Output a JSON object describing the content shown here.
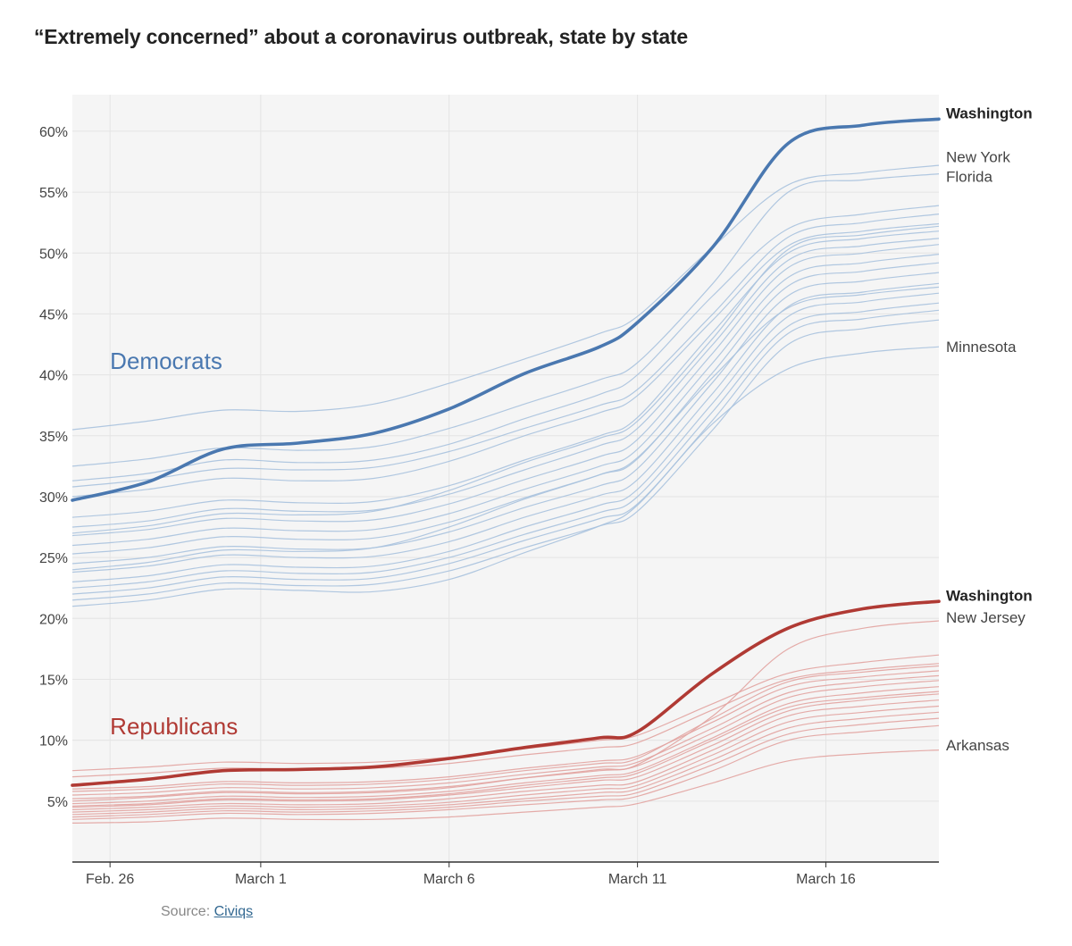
{
  "title": "“Extremely concerned” about a coronavirus outbreak, state by state",
  "source": {
    "label": "Source:",
    "link_text": "Civiqs"
  },
  "colors": {
    "democrat": "#4A78B0",
    "democrat_light": "#A9C2DE",
    "republican": "#B03A34",
    "republican_light": "#E2A3A0",
    "grid": "#E4E4E4",
    "plot_bg": "#F5F5F5",
    "axis": "#333333",
    "label": "#444444"
  },
  "chart_data": {
    "type": "line",
    "title": "“Extremely concerned” about a coronavirus outbreak, state by state",
    "xlabel": "",
    "ylabel": "",
    "ylim": [
      0,
      63
    ],
    "xlim": [
      -1,
      22
    ],
    "grid": true,
    "y_ticks": [
      5,
      10,
      15,
      20,
      25,
      30,
      35,
      40,
      45,
      50,
      55,
      60
    ],
    "y_tick_labels": [
      "5%",
      "10%",
      "15%",
      "20%",
      "25%",
      "30%",
      "35%",
      "40%",
      "45%",
      "50%",
      "55%",
      "60%"
    ],
    "x_ticks": [
      0,
      4,
      9,
      14,
      19
    ],
    "x_tick_labels": [
      "Feb. 26",
      "March 1",
      "March 6",
      "March 11",
      "March 16"
    ],
    "x": [
      -1,
      1,
      3,
      5,
      7,
      9,
      11,
      13,
      14,
      16,
      18,
      20,
      22
    ],
    "group_labels": [
      {
        "text": "Democrats",
        "group": "democrat",
        "x": 0,
        "y": 40.5
      },
      {
        "text": "Republicans",
        "group": "republican",
        "x": 0,
        "y": 10.5
      }
    ],
    "series": [
      {
        "name": "Washington (Democrats)",
        "group": "democrat",
        "highlight": true,
        "label": "Washington",
        "values": [
          29.7,
          31.2,
          33.9,
          34.4,
          35.2,
          37.2,
          40.1,
          42.3,
          44.3,
          50.5,
          59.0,
          60.5,
          61.0
        ]
      },
      {
        "name": "New York (Democrats)",
        "group": "democrat",
        "label": "New York",
        "values": [
          35.5,
          36.2,
          37.1,
          37.0,
          37.6,
          39.3,
          41.3,
          43.4,
          44.8,
          50.5,
          55.6,
          56.6,
          57.2
        ]
      },
      {
        "name": "Florida (Democrats)",
        "group": "democrat",
        "label": "Florida",
        "values": [
          32.5,
          33.1,
          34.0,
          33.8,
          34.1,
          35.6,
          37.6,
          39.6,
          41.0,
          47.5,
          55.0,
          56.0,
          56.5
        ]
      },
      {
        "name": "Minnesota (Democrats)",
        "group": "democrat",
        "label": "Minnesota",
        "values": [
          21.0,
          21.5,
          22.4,
          22.3,
          22.2,
          23.2,
          25.4,
          27.6,
          29.3,
          36.0,
          40.5,
          41.8,
          42.3
        ]
      },
      {
        "name": "State (Democrats) 5",
        "group": "democrat",
        "values": [
          31.3,
          31.9,
          33.0,
          32.8,
          33.0,
          34.3,
          36.4,
          38.4,
          40.0,
          46.5,
          52.0,
          53.2,
          53.9
        ]
      },
      {
        "name": "State (Democrats) 6",
        "group": "democrat",
        "values": [
          30.8,
          31.4,
          32.3,
          32.2,
          32.4,
          33.7,
          35.6,
          37.5,
          38.8,
          45.0,
          51.3,
          52.5,
          53.2
        ]
      },
      {
        "name": "State (Democrats) 7",
        "group": "democrat",
        "values": [
          30.0,
          30.6,
          31.5,
          31.3,
          31.5,
          32.9,
          35.0,
          36.9,
          38.3,
          44.5,
          50.6,
          51.8,
          52.4
        ]
      },
      {
        "name": "State (Democrats) 8",
        "group": "democrat",
        "values": [
          28.3,
          28.8,
          29.7,
          29.5,
          29.6,
          30.9,
          33.0,
          35.0,
          36.5,
          43.5,
          50.0,
          51.2,
          51.8
        ]
      },
      {
        "name": "State (Democrats) 9",
        "group": "democrat",
        "values": [
          27.5,
          28.0,
          29.0,
          28.8,
          28.9,
          30.2,
          32.2,
          34.2,
          35.6,
          42.5,
          49.4,
          50.6,
          51.2
        ]
      },
      {
        "name": "State (Democrats) 10",
        "group": "democrat",
        "values": [
          26.8,
          27.3,
          28.2,
          28.0,
          28.1,
          29.4,
          31.4,
          33.3,
          34.7,
          41.8,
          48.8,
          50.0,
          50.7
        ]
      },
      {
        "name": "State (Democrats) 11",
        "group": "democrat",
        "values": [
          26.0,
          26.5,
          27.4,
          27.2,
          27.3,
          28.6,
          30.6,
          32.5,
          33.9,
          41.0,
          48.0,
          49.2,
          49.9
        ]
      },
      {
        "name": "State (Democrats) 12",
        "group": "democrat",
        "values": [
          25.3,
          25.8,
          26.7,
          26.5,
          26.6,
          27.9,
          29.9,
          31.8,
          33.1,
          40.2,
          47.3,
          48.5,
          49.2
        ]
      },
      {
        "name": "State (Democrats) 13",
        "group": "democrat",
        "values": [
          24.5,
          25.0,
          25.9,
          25.7,
          25.8,
          27.1,
          29.1,
          30.9,
          32.3,
          39.4,
          46.5,
          47.7,
          48.4
        ]
      },
      {
        "name": "State (Democrats) 14",
        "group": "democrat",
        "values": [
          23.8,
          24.3,
          25.2,
          25.0,
          25.1,
          26.3,
          28.3,
          30.1,
          31.4,
          38.5,
          45.6,
          46.8,
          47.5
        ]
      },
      {
        "name": "State (Democrats) 15",
        "group": "democrat",
        "values": [
          23.0,
          23.5,
          24.4,
          24.2,
          24.3,
          25.5,
          27.5,
          29.3,
          30.6,
          37.7,
          44.8,
          46.0,
          46.7
        ]
      },
      {
        "name": "State (Democrats) 16",
        "group": "democrat",
        "values": [
          22.5,
          23.0,
          23.9,
          23.7,
          23.8,
          25.0,
          26.9,
          28.7,
          30.0,
          37.0,
          44.0,
          45.2,
          45.9
        ]
      },
      {
        "name": "State (Democrats) 17",
        "group": "democrat",
        "values": [
          22.0,
          22.5,
          23.4,
          23.2,
          23.3,
          24.5,
          26.4,
          28.2,
          29.4,
          36.3,
          43.4,
          44.6,
          45.3
        ]
      },
      {
        "name": "State (Democrats) 18",
        "group": "democrat",
        "values": [
          21.5,
          22.0,
          22.9,
          22.7,
          22.8,
          23.9,
          25.8,
          27.6,
          28.8,
          35.5,
          42.5,
          43.8,
          44.5
        ]
      },
      {
        "name": "State (Democrats) 19",
        "group": "democrat",
        "values": [
          27.0,
          27.6,
          28.6,
          28.5,
          28.8,
          30.5,
          32.8,
          34.8,
          36.2,
          43.0,
          50.3,
          51.5,
          52.2
        ]
      },
      {
        "name": "State (Democrats) 20",
        "group": "democrat",
        "values": [
          24.0,
          24.6,
          25.6,
          25.5,
          25.8,
          27.5,
          29.8,
          31.8,
          33.2,
          39.8,
          45.5,
          46.6,
          47.2
        ]
      },
      {
        "name": "Washington (Republicans)",
        "group": "republican",
        "highlight": true,
        "label": "Washington",
        "values": [
          6.3,
          6.8,
          7.5,
          7.6,
          7.8,
          8.5,
          9.4,
          10.2,
          10.7,
          15.5,
          19.2,
          20.8,
          21.4
        ]
      },
      {
        "name": "New Jersey (Republicans)",
        "group": "republican",
        "label": "New Jersey",
        "values": [
          5.0,
          5.3,
          5.7,
          5.6,
          5.7,
          6.1,
          6.9,
          7.6,
          8.0,
          12.0,
          17.5,
          19.2,
          19.8
        ]
      },
      {
        "name": "Arkansas (Republicans)",
        "group": "republican",
        "label": "Arkansas",
        "values": [
          3.2,
          3.3,
          3.6,
          3.5,
          3.5,
          3.7,
          4.1,
          4.5,
          4.8,
          6.5,
          8.3,
          8.9,
          9.2
        ]
      },
      {
        "name": "State (Republicans) 4",
        "group": "republican",
        "values": [
          7.5,
          7.8,
          8.2,
          8.1,
          8.2,
          8.6,
          9.3,
          10.0,
          10.4,
          13.0,
          15.5,
          16.4,
          17.0
        ]
      },
      {
        "name": "State (Republicans) 5",
        "group": "republican",
        "values": [
          7.0,
          7.3,
          7.7,
          7.6,
          7.7,
          8.1,
          8.8,
          9.4,
          9.8,
          12.5,
          15.0,
          15.8,
          16.3
        ]
      },
      {
        "name": "State (Republicans) 6",
        "group": "republican",
        "values": [
          6.0,
          6.2,
          6.6,
          6.5,
          6.6,
          7.0,
          7.7,
          8.3,
          8.7,
          11.5,
          14.4,
          15.2,
          15.7
        ]
      },
      {
        "name": "State (Republicans) 7",
        "group": "republican",
        "values": [
          5.5,
          5.7,
          6.1,
          6.0,
          6.1,
          6.5,
          7.2,
          7.8,
          8.2,
          11.0,
          13.9,
          14.8,
          15.3
        ]
      },
      {
        "name": "State (Republicans) 8",
        "group": "republican",
        "values": [
          5.2,
          5.4,
          5.8,
          5.7,
          5.8,
          6.2,
          6.9,
          7.5,
          7.9,
          10.6,
          13.5,
          14.4,
          14.9
        ]
      },
      {
        "name": "State (Republicans) 9",
        "group": "republican",
        "values": [
          4.8,
          5.0,
          5.4,
          5.3,
          5.4,
          5.8,
          6.5,
          7.1,
          7.5,
          10.2,
          13.0,
          13.9,
          14.4
        ]
      },
      {
        "name": "State (Republicans) 10",
        "group": "republican",
        "values": [
          4.5,
          4.7,
          5.1,
          5.0,
          5.1,
          5.5,
          6.1,
          6.7,
          7.0,
          9.6,
          12.4,
          13.3,
          13.8
        ]
      },
      {
        "name": "State (Republicans) 11",
        "group": "republican",
        "values": [
          4.3,
          4.5,
          4.8,
          4.7,
          4.8,
          5.2,
          5.8,
          6.3,
          6.6,
          9.2,
          12.0,
          12.8,
          13.3
        ]
      },
      {
        "name": "State (Republicans) 12",
        "group": "republican",
        "values": [
          4.1,
          4.3,
          4.6,
          4.5,
          4.6,
          4.9,
          5.5,
          6.0,
          6.3,
          8.8,
          11.5,
          12.3,
          12.8
        ]
      },
      {
        "name": "State (Republicans) 13",
        "group": "republican",
        "values": [
          3.9,
          4.1,
          4.4,
          4.3,
          4.4,
          4.7,
          5.2,
          5.7,
          6.0,
          8.4,
          11.0,
          11.8,
          12.3
        ]
      },
      {
        "name": "State (Republicans) 14",
        "group": "republican",
        "values": [
          3.7,
          3.9,
          4.2,
          4.1,
          4.2,
          4.5,
          5.0,
          5.4,
          5.7,
          8.0,
          10.5,
          11.3,
          11.8
        ]
      },
      {
        "name": "State (Republicans) 15",
        "group": "republican",
        "values": [
          3.5,
          3.7,
          4.0,
          3.9,
          4.0,
          4.3,
          4.7,
          5.1,
          5.4,
          7.5,
          10.0,
          10.7,
          11.2
        ]
      },
      {
        "name": "State (Republicans) 16",
        "group": "republican",
        "values": [
          4.6,
          4.8,
          5.2,
          5.1,
          5.2,
          5.6,
          6.3,
          6.9,
          7.3,
          10.0,
          12.7,
          13.5,
          14.0
        ]
      },
      {
        "name": "State (Republicans) 17",
        "group": "republican",
        "values": [
          5.8,
          6.0,
          6.4,
          6.3,
          6.4,
          6.8,
          7.5,
          8.1,
          8.5,
          11.8,
          14.8,
          15.6,
          16.1
        ]
      }
    ],
    "end_labels": [
      {
        "text": "Washington",
        "group": "democrat",
        "bold": true,
        "y": 61.5
      },
      {
        "text": "New York",
        "group": "democrat",
        "bold": false,
        "y": 57.9
      },
      {
        "text": "Florida",
        "group": "democrat",
        "bold": false,
        "y": 56.3
      },
      {
        "text": "Minnesota",
        "group": "democrat",
        "bold": false,
        "y": 42.3
      },
      {
        "text": "Washington",
        "group": "republican",
        "bold": true,
        "y": 21.9
      },
      {
        "text": "New Jersey",
        "group": "republican",
        "bold": false,
        "y": 20.1
      },
      {
        "text": "Arkansas",
        "group": "republican",
        "bold": false,
        "y": 9.6
      }
    ]
  }
}
